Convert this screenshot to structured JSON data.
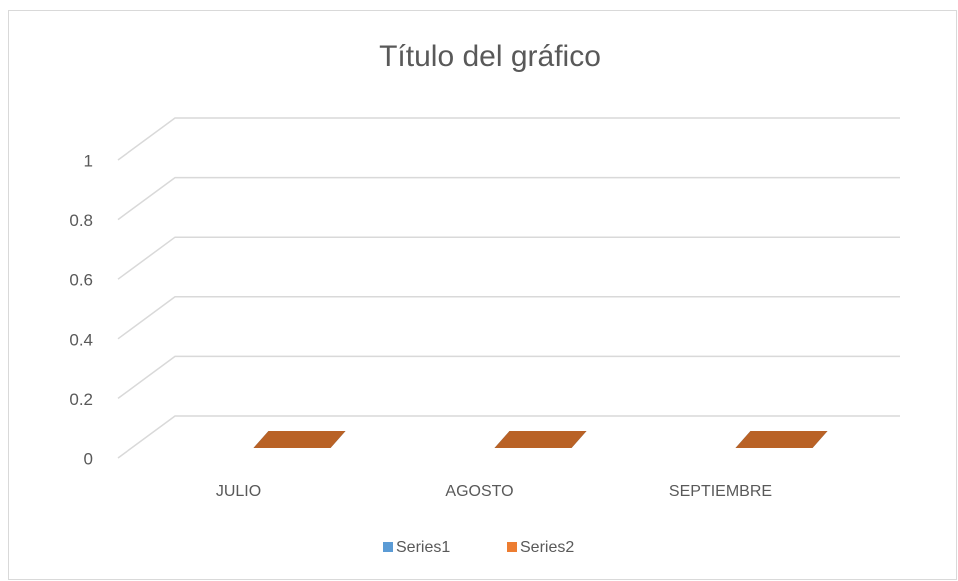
{
  "chart_data": {
    "type": "bar3d",
    "title": "Título del gráfico",
    "categories": [
      "JULIO",
      "AGOSTO",
      "SEPTIEMBRE"
    ],
    "series": [
      {
        "name": "Series1",
        "color": "#5b9bd5",
        "values": [
          0,
          0,
          0
        ]
      },
      {
        "name": "Series2",
        "color": "#ed7d31",
        "values": [
          0,
          0,
          0
        ]
      }
    ],
    "ylim": [
      0,
      1
    ],
    "yticks": [
      0,
      0.2,
      0.4,
      0.6,
      0.8,
      1
    ],
    "grid": true,
    "legend": "bottom"
  }
}
